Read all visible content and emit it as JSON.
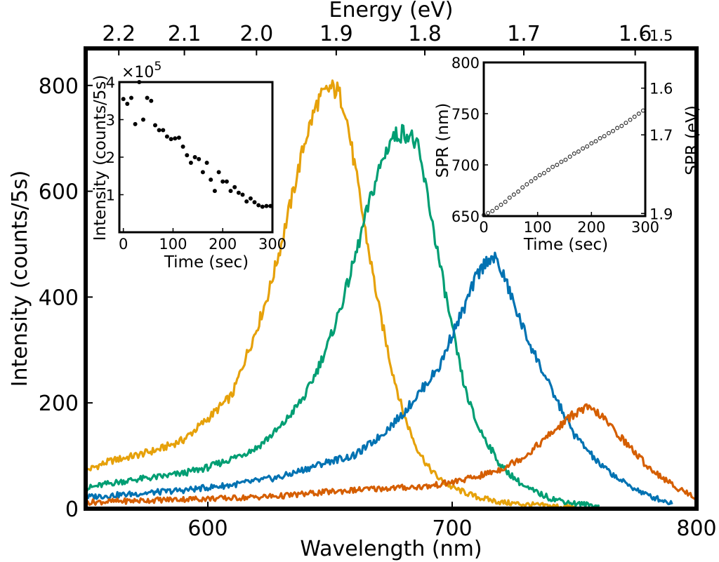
{
  "chart_data": [
    {
      "type": "line",
      "title": "",
      "xlabel": "Wavelength (nm)",
      "ylabel": "Intensity (counts/5s)",
      "top_xlabel": "Energy (eV)",
      "xlim": [
        550,
        800
      ],
      "ylim": [
        0,
        870
      ],
      "xticks": [
        600,
        700,
        800
      ],
      "yticks": [
        0,
        200,
        400,
        600,
        800
      ],
      "top_ticks": [
        {
          "value": 2.2,
          "label": "2.2"
        },
        {
          "value": 2.1,
          "label": "2.1"
        },
        {
          "value": 2.0,
          "label": "2.0"
        },
        {
          "value": 1.9,
          "label": "1.9"
        },
        {
          "value": 1.8,
          "label": "1.8"
        },
        {
          "value": 1.7,
          "label": "1.7"
        },
        {
          "value": 1.6,
          "label": "1.6"
        }
      ],
      "grid": false,
      "legend": "none",
      "series": [
        {
          "color": "#E6A10A",
          "x": [
            550,
            560,
            570,
            580,
            590,
            600,
            610,
            615,
            620,
            625,
            630,
            635,
            640,
            645,
            650,
            653,
            656,
            660,
            665,
            670,
            675,
            680,
            685,
            690,
            695,
            700,
            710,
            720,
            730,
            740,
            750
          ],
          "y": [
            72,
            90,
            100,
            112,
            130,
            170,
            215,
            280,
            340,
            410,
            500,
            600,
            700,
            770,
            795,
            790,
            760,
            650,
            510,
            380,
            270,
            180,
            120,
            80,
            55,
            40,
            22,
            12,
            8,
            5,
            3
          ]
        },
        {
          "color": "#009E73",
          "x": [
            550,
            560,
            570,
            580,
            590,
            600,
            610,
            620,
            630,
            640,
            645,
            650,
            655,
            660,
            665,
            670,
            675,
            680,
            683,
            686,
            690,
            695,
            700,
            705,
            710,
            720,
            730,
            740,
            750,
            760
          ],
          "y": [
            38,
            48,
            55,
            60,
            67,
            78,
            95,
            115,
            155,
            215,
            265,
            320,
            390,
            470,
            560,
            640,
            700,
            712,
            705,
            680,
            590,
            460,
            340,
            230,
            160,
            80,
            40,
            20,
            10,
            5
          ]
        },
        {
          "color": "#0072B2",
          "x": [
            550,
            570,
            590,
            610,
            630,
            640,
            650,
            660,
            670,
            680,
            690,
            695,
            700,
            705,
            710,
            715,
            718,
            722,
            725,
            730,
            735,
            740,
            750,
            760,
            770,
            780,
            790
          ],
          "y": [
            22,
            28,
            35,
            45,
            60,
            75,
            90,
            100,
            135,
            180,
            240,
            270,
            330,
            380,
            440,
            475,
            470,
            430,
            390,
            330,
            280,
            230,
            140,
            85,
            50,
            25,
            10
          ]
        },
        {
          "color": "#D55E00",
          "x": [
            550,
            570,
            590,
            610,
            630,
            650,
            670,
            690,
            700,
            710,
            720,
            730,
            740,
            750,
            755,
            760,
            770,
            780,
            790,
            800
          ],
          "y": [
            12,
            15,
            18,
            20,
            24,
            32,
            38,
            42,
            50,
            60,
            75,
            100,
            140,
            180,
            190,
            180,
            130,
            80,
            45,
            20
          ]
        }
      ]
    },
    {
      "type": "scatter",
      "title": "",
      "xlabel": "Time (sec)",
      "ylabel": "Intensity (counts/5s)",
      "multiplier": "×10",
      "multiplier_exp": "5",
      "xlim": [
        -8,
        300
      ],
      "ylim": [
        0,
        4
      ],
      "xticks": [
        0,
        100,
        200,
        300
      ],
      "yticks": [
        1,
        2,
        3,
        4
      ],
      "x": [
        0,
        8,
        16,
        24,
        32,
        40,
        48,
        56,
        64,
        72,
        80,
        88,
        96,
        104,
        112,
        120,
        128,
        136,
        144,
        152,
        160,
        168,
        176,
        184,
        192,
        200,
        208,
        216,
        224,
        232,
        240,
        248,
        256,
        264,
        272,
        280,
        288,
        296
      ],
      "y": [
        3.55,
        3.42,
        3.58,
        2.88,
        4.0,
        3.0,
        3.58,
        3.5,
        2.85,
        2.72,
        2.72,
        2.55,
        2.48,
        2.5,
        2.52,
        2.28,
        2.05,
        1.85,
        2.0,
        1.95,
        1.6,
        1.85,
        1.4,
        1.1,
        1.6,
        1.35,
        1.35,
        1.1,
        1.2,
        1.05,
        1.0,
        0.82,
        0.9,
        0.8,
        0.72,
        0.68,
        0.7,
        0.7
      ]
    },
    {
      "type": "scatter",
      "title": "",
      "xlabel": "Time (sec)",
      "ylabel": "SPR (nm)",
      "right_ylabel": "SPR (eV)",
      "xlim": [
        0,
        300
      ],
      "ylim": [
        650,
        800
      ],
      "xticks": [
        0,
        100,
        200,
        300
      ],
      "yticks": [
        650,
        700,
        750,
        800
      ],
      "right_ticks": [
        {
          "value": 1.5,
          "label": "1.5"
        },
        {
          "value": 1.6,
          "label": "1.6"
        },
        {
          "value": 1.7,
          "label": "1.7"
        },
        {
          "value": 1.9,
          "label": "1.9"
        }
      ],
      "x": [
        0,
        8,
        16,
        24,
        32,
        40,
        48,
        56,
        64,
        72,
        80,
        88,
        96,
        104,
        112,
        120,
        128,
        136,
        144,
        152,
        160,
        168,
        176,
        184,
        192,
        200,
        208,
        216,
        224,
        232,
        240,
        248,
        256,
        264,
        272,
        280,
        288,
        296
      ],
      "y": [
        651,
        653,
        655,
        658,
        661,
        664,
        668,
        671,
        674,
        678,
        681,
        684,
        687,
        690,
        692,
        695,
        698,
        700,
        703,
        705,
        708,
        711,
        713,
        716,
        718,
        721,
        723,
        726,
        728,
        731,
        733,
        736,
        738,
        741,
        744,
        747,
        750,
        753
      ]
    }
  ]
}
